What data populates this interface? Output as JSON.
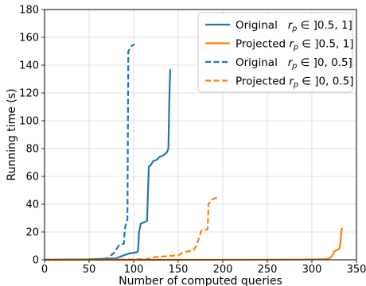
{
  "chart_data": {
    "type": "line",
    "title": "",
    "xlabel": "Number of computed queries",
    "ylabel": "Running time (s)",
    "xlim": [
      0,
      350
    ],
    "ylim": [
      0,
      180
    ],
    "x_ticks": [
      0,
      50,
      100,
      150,
      200,
      250,
      300,
      350
    ],
    "y_ticks": [
      0,
      20,
      40,
      60,
      80,
      100,
      120,
      140,
      160,
      180
    ],
    "grid": true,
    "legend_position": "top-right",
    "series": [
      {
        "name": "Original   r_p ∈ ]0.5, 1]",
        "color": "#1f77b4",
        "line_style": "solid",
        "points": [
          [
            0,
            0
          ],
          [
            50,
            0.3
          ],
          [
            80,
            1
          ],
          [
            88,
            3
          ],
          [
            95,
            4.5
          ],
          [
            100,
            5
          ],
          [
            104,
            5.5
          ],
          [
            105,
            7
          ],
          [
            106,
            20
          ],
          [
            108,
            26
          ],
          [
            112,
            27
          ],
          [
            115,
            28
          ],
          [
            117,
            67
          ],
          [
            119,
            68
          ],
          [
            122,
            71
          ],
          [
            126,
            72
          ],
          [
            129,
            74
          ],
          [
            133,
            75
          ],
          [
            137,
            77
          ],
          [
            139,
            80
          ],
          [
            140,
            115
          ],
          [
            141,
            137
          ]
        ]
      },
      {
        "name": "Projected r_p ∈ ]0.5, 1]",
        "color": "#ff7f0e",
        "line_style": "solid",
        "points": [
          [
            0,
            0
          ],
          [
            150,
            0
          ],
          [
            250,
            0.1
          ],
          [
            300,
            0.3
          ],
          [
            316,
            0.5
          ],
          [
            320,
            1
          ],
          [
            323,
            3
          ],
          [
            325,
            6
          ],
          [
            328,
            7
          ],
          [
            331,
            8
          ],
          [
            332,
            12
          ],
          [
            333,
            20
          ],
          [
            334,
            23
          ]
        ]
      },
      {
        "name": "Original   r_p ∈ ]0, 0.5]",
        "color": "#1f77b4",
        "line_style": "dashed",
        "points": [
          [
            0,
            0
          ],
          [
            40,
            0.2
          ],
          [
            60,
            0.5
          ],
          [
            70,
            1
          ],
          [
            74,
            3
          ],
          [
            78,
            5
          ],
          [
            81,
            8
          ],
          [
            83,
            10
          ],
          [
            86,
            11
          ],
          [
            89,
            11.5
          ],
          [
            90,
            22
          ],
          [
            92,
            27
          ],
          [
            93,
            29
          ],
          [
            94,
            150
          ],
          [
            96,
            152
          ],
          [
            98,
            154
          ],
          [
            101,
            155
          ]
        ]
      },
      {
        "name": "Projected r_p ∈ ]0, 0.5]",
        "color": "#ff7f0e",
        "line_style": "dashed",
        "points": [
          [
            0,
            0
          ],
          [
            80,
            0.1
          ],
          [
            115,
            0.5
          ],
          [
            125,
            2
          ],
          [
            135,
            2.5
          ],
          [
            145,
            3
          ],
          [
            150,
            3.2
          ],
          [
            155,
            5
          ],
          [
            160,
            6
          ],
          [
            167,
            6.5
          ],
          [
            170,
            10
          ],
          [
            173,
            15
          ],
          [
            176,
            21
          ],
          [
            180,
            21.5
          ],
          [
            183,
            22
          ],
          [
            184,
            40
          ],
          [
            187,
            43
          ],
          [
            190,
            44
          ],
          [
            194,
            44.5
          ]
        ]
      }
    ],
    "legend": {
      "entries": [
        {
          "prefix": "Original   ",
          "math": "r",
          "sub": "p",
          "interval": "∈ ]0.5, 1]",
          "color": "#1f77b4",
          "dash": false
        },
        {
          "prefix": "Projected ",
          "math": "r",
          "sub": "p",
          "interval": "∈ ]0.5, 1]",
          "color": "#ff7f0e",
          "dash": false
        },
        {
          "prefix": "Original   ",
          "math": "r",
          "sub": "p",
          "interval": "∈ ]0, 0.5]",
          "color": "#1f77b4",
          "dash": true
        },
        {
          "prefix": "Projected ",
          "math": "r",
          "sub": "p",
          "interval": "∈ ]0, 0.5]",
          "color": "#ff7f0e",
          "dash": true
        }
      ]
    }
  }
}
